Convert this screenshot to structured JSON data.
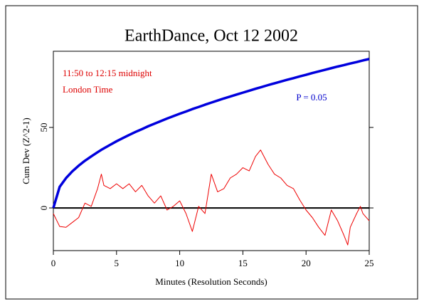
{
  "chart_data": {
    "type": "line",
    "title": "EarthDance, Oct 12 2002",
    "x_label": "Minutes (Resolution Seconds)",
    "y_label": "Cum Dev (Z^2-1)",
    "annotations": [
      {
        "text": "11:50 to 12:15 midnight",
        "color": "#dd0000"
      },
      {
        "text": "London Time",
        "color": "#dd0000"
      },
      {
        "text": "P = 0.05",
        "color": "#0000cc"
      }
    ],
    "x": [
      0,
      0.5,
      1,
      1.5,
      2,
      2.5,
      3,
      3.5,
      3.8,
      4,
      4.5,
      5,
      5.5,
      6,
      6.5,
      7,
      7.5,
      8,
      8.5,
      9,
      9.5,
      10,
      10.5,
      11,
      11.5,
      12,
      12.5,
      13,
      13.5,
      14,
      14.5,
      15,
      15.5,
      16,
      16.4,
      17,
      17.5,
      18,
      18.5,
      19,
      19.5,
      20,
      20.5,
      21,
      21.5,
      22,
      22.5,
      23,
      23.3,
      23.5,
      24,
      24.3,
      24.5,
      25
    ],
    "series": [
      {
        "name": "Cum Dev",
        "color": "#ee0000",
        "width": 1,
        "values": [
          -3.5,
          -11.5,
          -12,
          -9,
          -6,
          3,
          1,
          12,
          21,
          14,
          12,
          15,
          12,
          15,
          10,
          14,
          7.5,
          3,
          7.5,
          -1.3,
          1,
          4.4,
          -3.5,
          -14.6,
          1,
          -3.5,
          21,
          10,
          12,
          18.6,
          21,
          25,
          23,
          32,
          36,
          27,
          21,
          18.6,
          14,
          12,
          5,
          -1.3,
          -6,
          -12,
          -17,
          -1.3,
          -8,
          -17,
          -23,
          -12,
          -3.5,
          1,
          -3.5,
          -8
        ]
      },
      {
        "name": "P = 0.05 envelope",
        "color": "#0000dd",
        "width": 3.5,
        "values": [
          0,
          13.1,
          18.5,
          22.7,
          26.2,
          29.3,
          32.0,
          34.6,
          36.1,
          37.0,
          39.2,
          41.4,
          43.4,
          45.3,
          47.2,
          48.9,
          50.7,
          52.3,
          53.9,
          55.5,
          57.0,
          58.5,
          59.9,
          61.4,
          62.7,
          64.1,
          65.4,
          66.7,
          68.0,
          69.2,
          70.4,
          71.6,
          72.8,
          74.0,
          74.9,
          76.3,
          77.4,
          78.5,
          79.6,
          80.6,
          81.7,
          82.7,
          83.8,
          84.8,
          85.8,
          86.8,
          87.8,
          88.7,
          89.3,
          89.7,
          90.6,
          91.2,
          91.6,
          92.5
        ]
      }
    ],
    "xlim": [
      0,
      25
    ],
    "xticks": [
      0,
      5,
      10,
      15,
      20,
      25
    ],
    "ylim": [
      -26.5,
      97.3
    ],
    "yticks": [
      0,
      50
    ],
    "zero_line": true
  }
}
